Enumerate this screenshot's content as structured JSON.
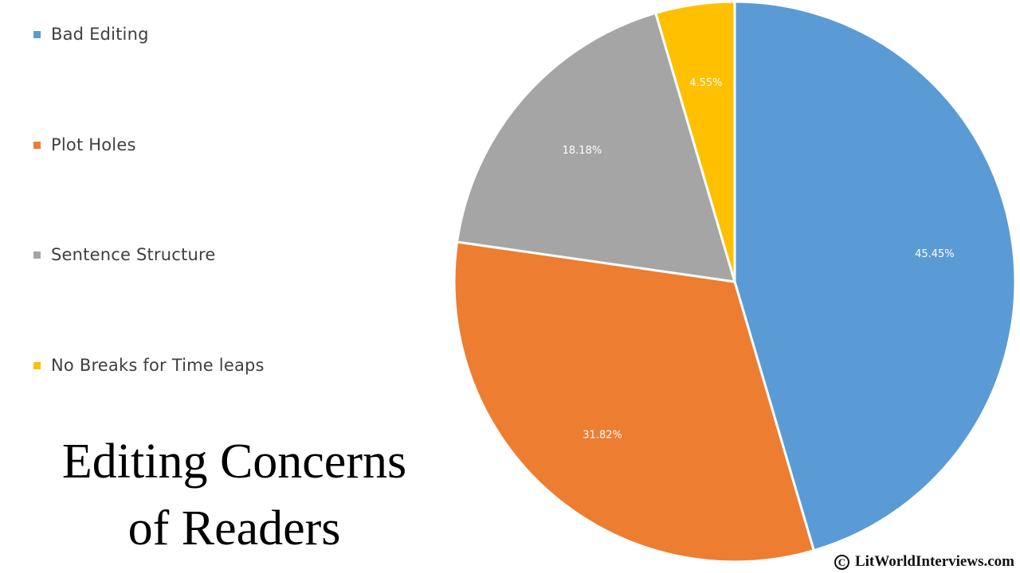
{
  "chart_data": {
    "type": "pie",
    "title": "Editing Concerns of Readers",
    "title_lines": [
      "Editing Concerns",
      "of Readers"
    ],
    "legend_position": "left",
    "start_angle_deg": 0,
    "direction": "clockwise",
    "slices": [
      {
        "label": "Bad Editing",
        "value": 45.45,
        "display": "45.45%",
        "color": "#5b9bd5"
      },
      {
        "label": "Plot Holes",
        "value": 31.82,
        "display": "31.82%",
        "color": "#ed7d31"
      },
      {
        "label": "Sentence Structure",
        "value": 18.18,
        "display": "18.18%",
        "color": "#a5a5a5"
      },
      {
        "label": "No Breaks for Time leaps",
        "value": 4.55,
        "display": "4.55%",
        "color": "#ffc000"
      }
    ]
  },
  "footer": {
    "copyright_symbol": "C",
    "copyright_text": "LitWorldInterviews.com"
  }
}
